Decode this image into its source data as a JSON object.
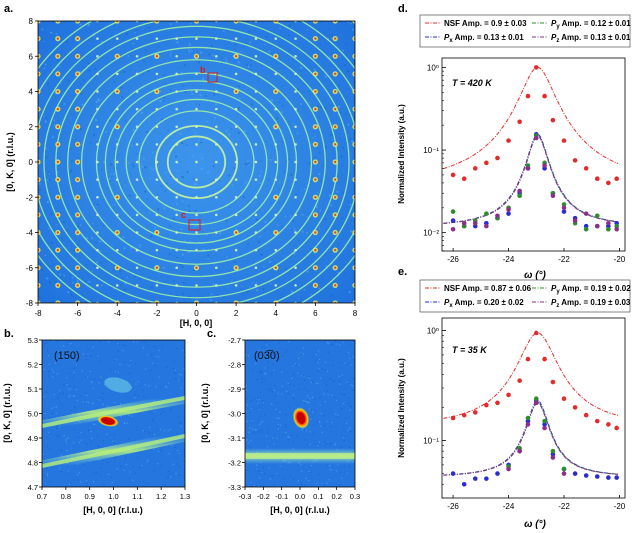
{
  "panels": {
    "a": {
      "label": "a.",
      "xlabel": "[H, 0, 0]",
      "ylabel": "[0, K, 0] (r.l.u.)",
      "xticks": [
        "-8",
        "-6",
        "-4",
        "-2",
        "0",
        "2",
        "4",
        "6",
        "8"
      ],
      "yticks": [
        "8",
        "6",
        "4",
        "2",
        "0",
        "-2",
        "-4",
        "-6",
        "-8"
      ],
      "marker_b": "b",
      "marker_c": "c"
    },
    "b": {
      "label": "b.",
      "reflection": "(150)",
      "xlabel": "[H, 0, 0] (r.l.u.)",
      "ylabel": "[0, K, 0] (r.l.u.)",
      "xticks": [
        "0.7",
        "0.8",
        "0.9",
        "1.0",
        "1.1",
        "1.2",
        "1.3"
      ],
      "yticks": [
        "5.3",
        "5.2",
        "5.1",
        "5.0",
        "4.9",
        "4.8",
        "4.7"
      ]
    },
    "c": {
      "label": "c.",
      "reflection": "(03̅0)",
      "xlabel": "[H, 0, 0] (r.l.u.)",
      "ylabel": "[0, K, 0] (r.l.u.)",
      "xticks": [
        "-0.3",
        "-0.2",
        "-0.1",
        "0.0",
        "0.1",
        "0.2",
        "0.3"
      ],
      "yticks": [
        "-2.7",
        "-2.8",
        "-2.9",
        "-3.0",
        "-3.1",
        "-3.2",
        "-3.3"
      ]
    },
    "d": {
      "label": "d.",
      "legend": [
        "NSF Amp. = 0.9 ± 0.03",
        "P_y Amp. = 0.12 ± 0.01",
        "P_x Amp. = 0.13 ± 0.01",
        "P_z Amp. = 0.13 ± 0.01"
      ],
      "temperature": "T = 420 K",
      "xlabel": "ω (°)",
      "ylabel": "Normalized Intensity (a.u.)",
      "xticks": [
        "-26",
        "-24",
        "-22",
        "-20"
      ],
      "yticks": [
        "10⁰",
        "10⁻¹",
        "10⁻²"
      ]
    },
    "e": {
      "label": "e.",
      "legend": [
        "NSF Amp. = 0.87 ± 0.06",
        "P_y Amp. = 0.19 ± 0.02",
        "P_x Amp. = 0.20 ± 0.02",
        "P_z Amp. = 0.19 ± 0.03"
      ],
      "temperature": "T = 35 K",
      "xlabel": "ω (°)",
      "ylabel": "Normalized Intensity (a.u.)",
      "xticks": [
        "-26",
        "-24",
        "-22",
        "-20"
      ],
      "yticks": [
        "10⁰",
        "10⁻¹"
      ]
    }
  },
  "colors": {
    "nsf": "#e32b2b",
    "px": "#2b2bd6",
    "py": "#2e8b2e",
    "pz": "#8b2f8b",
    "map_bg": "#2f86e6",
    "ring": "#9af0a6"
  },
  "chart_data": [
    {
      "type": "scatter",
      "title": "d. T = 420 K",
      "xlabel": "ω (°)",
      "ylabel": "Normalized Intensity (a.u.)",
      "xlim": [
        -26.4,
        -19.8
      ],
      "ylim": [
        0.006,
        1.3
      ],
      "yscale": "log",
      "series": [
        {
          "name": "NSF",
          "x": [
            -26,
            -25.6,
            -25.2,
            -24.8,
            -24.4,
            -24,
            -23.6,
            -23.3,
            -23,
            -22.7,
            -22.4,
            -22,
            -21.6,
            -21.2,
            -20.8,
            -20.4,
            -20.1
          ],
          "y": [
            0.05,
            0.045,
            0.06,
            0.07,
            0.08,
            0.13,
            0.22,
            0.45,
            1.0,
            0.45,
            0.23,
            0.13,
            0.075,
            0.06,
            0.045,
            0.04,
            0.045
          ]
        },
        {
          "name": "Px",
          "x": [
            -26,
            -25.6,
            -25.2,
            -24.8,
            -24.4,
            -24,
            -23.6,
            -23.3,
            -23,
            -22.7,
            -22.4,
            -22,
            -21.6,
            -21.2,
            -20.8,
            -20.4,
            -20.1
          ],
          "y": [
            0.014,
            0.012,
            0.012,
            0.013,
            0.015,
            0.017,
            0.03,
            0.06,
            0.155,
            0.06,
            0.03,
            0.018,
            0.015,
            0.012,
            0.012,
            0.012,
            0.013
          ]
        },
        {
          "name": "Py",
          "x": [
            -26,
            -25.6,
            -25.2,
            -24.8,
            -24.4,
            -24,
            -23.6,
            -23.3,
            -23,
            -22.7,
            -22.4,
            -22,
            -21.6,
            -21.2,
            -20.8,
            -20.4,
            -20.1
          ],
          "y": [
            0.018,
            0.012,
            0.014,
            0.017,
            0.015,
            0.02,
            0.028,
            0.065,
            0.15,
            0.07,
            0.03,
            0.022,
            0.013,
            0.011,
            0.016,
            0.011,
            0.012
          ]
        },
        {
          "name": "Pz",
          "x": [
            -26,
            -25.6,
            -25.2,
            -24.8,
            -24.4,
            -24,
            -23.6,
            -23.3,
            -23,
            -22.7,
            -22.4,
            -22,
            -21.6,
            -21.2,
            -20.8,
            -20.4,
            -20.1
          ],
          "y": [
            0.011,
            0.013,
            0.013,
            0.012,
            0.016,
            0.019,
            0.032,
            0.06,
            0.14,
            0.065,
            0.028,
            0.02,
            0.014,
            0.017,
            0.012,
            0.013,
            0.011
          ]
        }
      ],
      "fit": {
        "center": -22.95,
        "width_nsf": 0.55,
        "width_pol": 0.35,
        "base_nsf": 0.035,
        "base_pol": 0.0115
      }
    },
    {
      "type": "scatter",
      "title": "e. T = 35 K",
      "xlabel": "ω (°)",
      "ylabel": "Normalized Intensity (a.u.)",
      "xlim": [
        -26.4,
        -19.8
      ],
      "ylim": [
        0.03,
        1.3
      ],
      "yscale": "log",
      "series": [
        {
          "name": "NSF",
          "x": [
            -26,
            -25.6,
            -25.2,
            -24.8,
            -24.4,
            -24,
            -23.6,
            -23.3,
            -23,
            -22.7,
            -22.4,
            -22,
            -21.6,
            -21.2,
            -20.8,
            -20.4,
            -20.1
          ],
          "y": [
            0.16,
            0.17,
            0.18,
            0.21,
            0.22,
            0.26,
            0.35,
            0.55,
            0.95,
            0.55,
            0.34,
            0.24,
            0.2,
            0.17,
            0.15,
            0.14,
            0.13
          ]
        },
        {
          "name": "Px",
          "x": [
            -26,
            -25.6,
            -25.2,
            -24.8,
            -24.4,
            -24,
            -23.6,
            -23.3,
            -23,
            -22.7,
            -22.4,
            -22,
            -21.6,
            -21.2,
            -20.8,
            -20.4,
            -20.1
          ],
          "y": [
            0.05,
            0.04,
            0.045,
            0.045,
            0.05,
            0.06,
            0.08,
            0.15,
            0.23,
            0.14,
            0.075,
            0.055,
            0.05,
            0.048,
            0.047,
            0.046,
            0.046
          ]
        },
        {
          "name": "Py",
          "x": [
            -24,
            -23.6,
            -23.3,
            -23,
            -22.7,
            -22.4,
            -22
          ],
          "y": [
            0.058,
            0.085,
            0.16,
            0.24,
            0.15,
            0.08,
            0.055
          ]
        },
        {
          "name": "Pz",
          "x": [
            -24,
            -23.6,
            -23.3,
            -23,
            -22.7,
            -22.4,
            -22
          ],
          "y": [
            0.055,
            0.08,
            0.14,
            0.22,
            0.13,
            0.07,
            0.05
          ]
        }
      ],
      "fit": {
        "center": -22.95,
        "width_nsf": 0.65,
        "width_pol": 0.4,
        "base_nsf": 0.13,
        "base_pol": 0.046
      }
    }
  ]
}
